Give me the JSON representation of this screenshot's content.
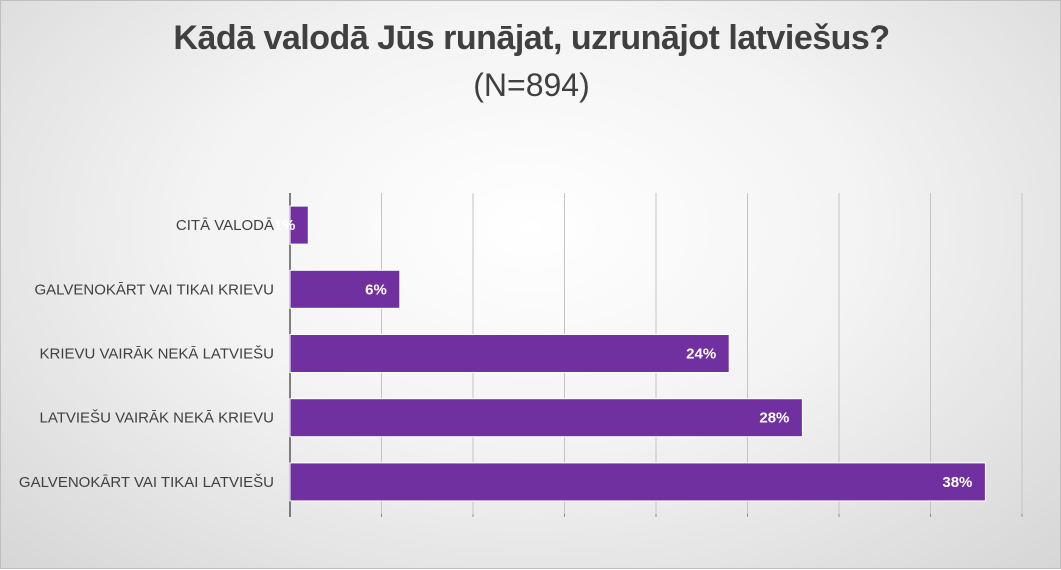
{
  "chart_data": {
    "type": "bar",
    "orientation": "horizontal",
    "title": "Kādā valodā Jūs runājat, uzrunājot latviešus?",
    "subtitle": "(N=894)",
    "categories": [
      "CITĀ VALODĀ",
      "GALVENOKĀRT VAI TIKAI KRIEVU",
      "KRIEVU VAIRĀK NEKĀ LATVIEŠU",
      "LATVIEŠU VAIRĀK NEKĀ KRIEVU",
      "GALVENOKĀRT VAI TIKAI LATVIEŠU"
    ],
    "values": [
      1,
      6,
      24,
      28,
      38
    ],
    "value_labels": [
      "1%",
      "6%",
      "24%",
      "28%",
      "38%"
    ],
    "xlim": [
      0,
      40
    ],
    "grid": "vertical",
    "bar_color": "#7030a0"
  }
}
